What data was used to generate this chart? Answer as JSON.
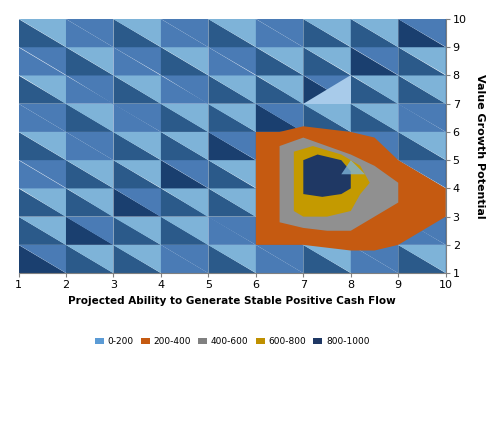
{
  "title_x": "Projected Ability to Generate Stable Positive Cash Flow",
  "title_y": "Value Growth Potential",
  "xlim": [
    1,
    10
  ],
  "ylim": [
    1,
    10
  ],
  "xticks": [
    1,
    2,
    3,
    4,
    5,
    6,
    7,
    8,
    9,
    10
  ],
  "yticks": [
    1,
    2,
    3,
    4,
    5,
    6,
    7,
    8,
    9,
    10
  ],
  "legend_labels": [
    "0-200",
    "200-400",
    "400-600",
    "600-800",
    "800-1000"
  ],
  "legend_colors": [
    "#5B9BD5",
    "#C55A11",
    "#808080",
    "#BF9000",
    "#1F3864"
  ],
  "bg_color": "#FFFFFF",
  "c_light": "#7EB3D8",
  "c_mid": "#4A7BB5",
  "c_dark": "#2B5A8A",
  "c_vdark": "#1A3F6F",
  "c_vlighter": "#A8CBEA",
  "c_orange": "#C55A11",
  "c_gray": "#909090",
  "c_yellow": "#C49A00",
  "c_navy": "#1F3864"
}
